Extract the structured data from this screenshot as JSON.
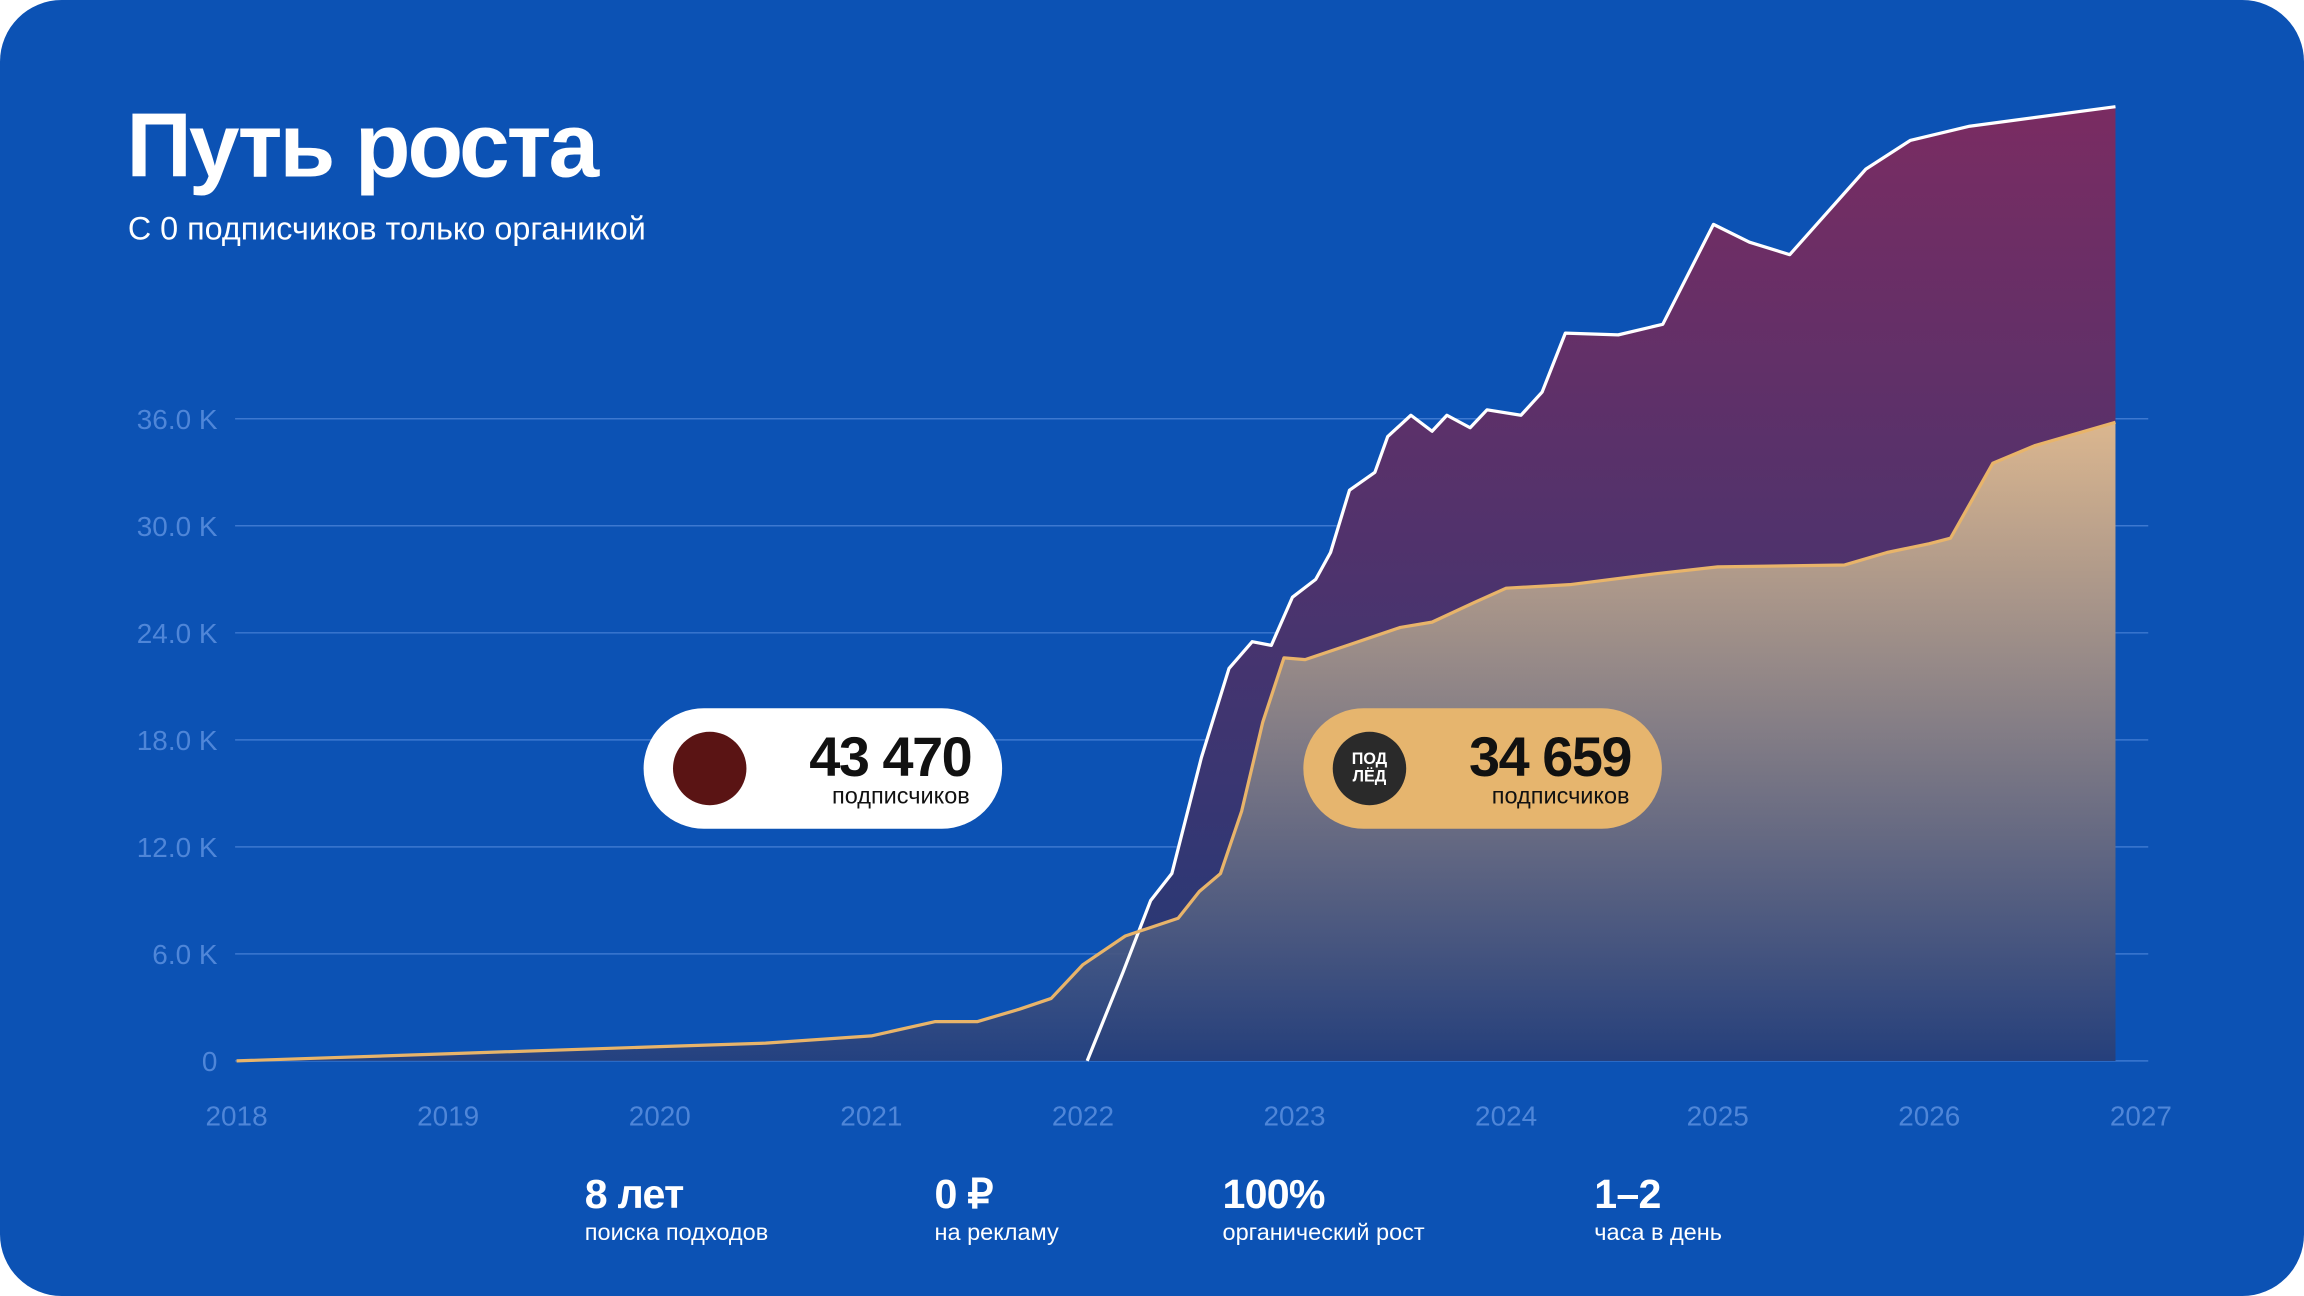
{
  "chart_data": {
    "type": "area",
    "title": "Путь роста",
    "subtitle": "С 0 подписчиков только органикой",
    "xlim": [
      2018,
      2027
    ],
    "xticks": [
      2018,
      2019,
      2020,
      2021,
      2022,
      2023,
      2024,
      2025,
      2026,
      2027
    ],
    "ylim": [
      0,
      54000
    ],
    "yticks": [
      0,
      {
        "value": 6000,
        "label": "6.0 K"
      },
      {
        "value": 12000,
        "label": "12.0 K"
      },
      {
        "value": 18000,
        "label": "18.0 K"
      },
      {
        "value": 24000,
        "label": "24.0 K"
      },
      {
        "value": 30000,
        "label": "30.0 K"
      },
      {
        "value": 36000,
        "label": "36.0 K"
      }
    ],
    "grid": true,
    "series": [
      {
        "color": "#ffffff",
        "area_colors": [
          "#7a2c62",
          "#1f3a78"
        ],
        "x": [
          2022.02,
          2022.19,
          2022.32,
          2022.42,
          2022.56,
          2022.69,
          2022.8,
          2022.89,
          2022.99,
          2023.1,
          2023.17,
          2023.26,
          2023.38,
          2023.44,
          2023.55,
          2023.65,
          2023.72,
          2023.83,
          2023.91,
          2024.07,
          2024.17,
          2024.28,
          2024.53,
          2024.74,
          2024.98,
          2025.15,
          2025.34,
          2025.7,
          2025.91,
          2026.19,
          2026.88
        ],
        "values": [
          0,
          5000,
          9000,
          10500,
          17000,
          22000,
          23500,
          23300,
          26000,
          27000,
          28500,
          32000,
          33000,
          35000,
          36200,
          35300,
          36200,
          35500,
          36500,
          36200,
          37500,
          40800,
          40700,
          41300,
          46900,
          45900,
          45200,
          50000,
          51600,
          52400,
          53500
        ]
      },
      {
        "color": "#e8b46a",
        "area_colors": [
          "#e6c292",
          "#26407c"
        ],
        "x": [
          2018,
          2019,
          2020,
          2020.5,
          2021,
          2021.3,
          2021.5,
          2021.7,
          2021.85,
          2022,
          2022.2,
          2022.45,
          2022.55,
          2022.65,
          2022.75,
          2022.85,
          2022.95,
          2023.05,
          2023.25,
          2023.5,
          2023.65,
          2023.85,
          2024,
          2024.3,
          2024.7,
          2025,
          2025.6,
          2025.8,
          2026,
          2026.1,
          2026.3,
          2026.5,
          2026.88
        ],
        "values": [
          0,
          400,
          800,
          1000,
          1400,
          2200,
          2200,
          2900,
          3500,
          5400,
          7000,
          8000,
          9500,
          10500,
          14000,
          19000,
          22600,
          22500,
          23300,
          24300,
          24600,
          25700,
          26500,
          26700,
          27300,
          27700,
          27800,
          28500,
          29000,
          29300,
          33500,
          34500,
          35800
        ]
      }
    ],
    "annotations": [
      {
        "text": "43 470",
        "caption": "подписчиков",
        "fill": "#ffffff",
        "icon_color": "#5a1414"
      },
      {
        "text": "34 659",
        "caption": "подписчиков",
        "fill": "#e6b56e",
        "icon_color": "#2a2a2a",
        "icon_text": [
          "ПОД",
          "ЛЁД"
        ]
      }
    ]
  },
  "stats": [
    {
      "value": "8 лет",
      "label": "поиска подходов"
    },
    {
      "value": "0 ₽",
      "label": "на рекламу"
    },
    {
      "value": "100%",
      "label": "органический рост"
    },
    {
      "value": "1–2",
      "label": "часа в день"
    }
  ]
}
